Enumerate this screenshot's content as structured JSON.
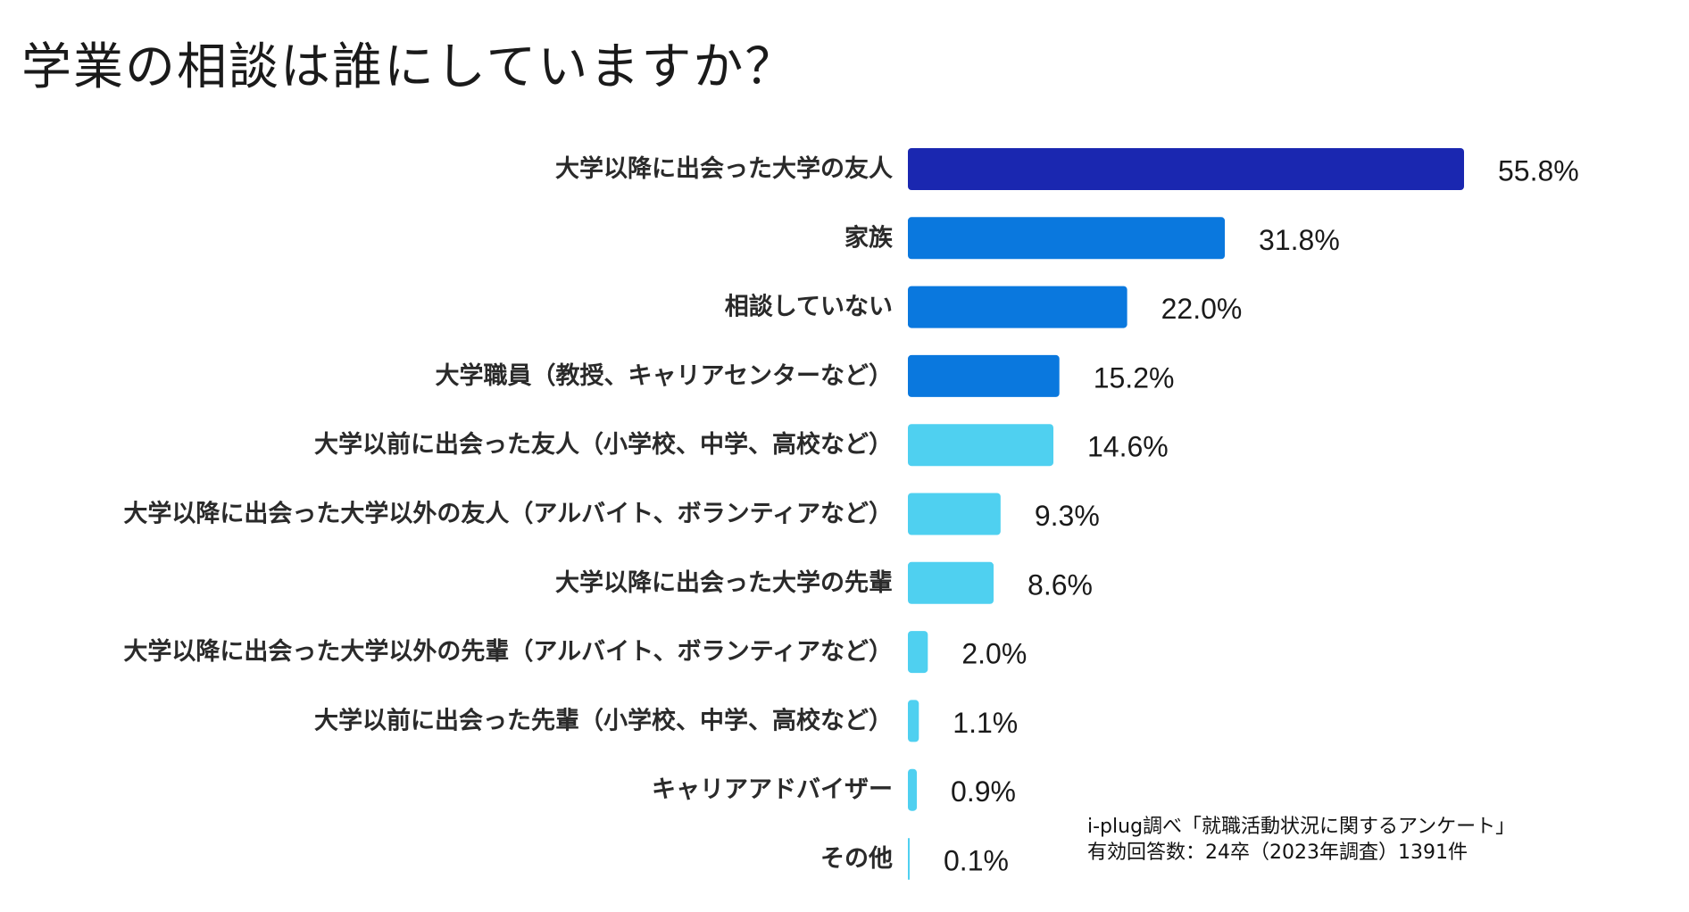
{
  "title": "学業の相談は誰にしていますか？",
  "chart_data": {
    "type": "bar",
    "orientation": "horizontal",
    "title": "学業の相談は誰にしていますか？",
    "categories": [
      "大学以降に出会った大学の友人",
      "家族",
      "相談していない",
      "大学職員（教授、キャリアセンターなど）",
      "大学以前に出会った友人（小学校、中学、高校など）",
      "大学以降に出会った大学以外の友人（アルバイト、ボランティアなど）",
      "大学以降に出会った大学の先輩",
      "大学以降に出会った大学以外の先輩（アルバイト、ボランティアなど）",
      "大学以前に出会った先輩（小学校、中学、高校など）",
      "キャリアアドバイザー",
      "その他"
    ],
    "values": [
      55.8,
      31.8,
      22.0,
      15.2,
      14.6,
      9.3,
      8.6,
      2.0,
      1.1,
      0.9,
      0.1
    ],
    "value_labels": [
      "55.8%",
      "31.8%",
      "22.0%",
      "15.2%",
      "14.6%",
      "9.3%",
      "8.6%",
      "2.0%",
      "1.1%",
      "0.9%",
      "0.1%"
    ],
    "colors": [
      "#1a27b0",
      "#0a78de",
      "#0a78de",
      "#0a78de",
      "#4fd0f0",
      "#4fd0f0",
      "#4fd0f0",
      "#4fd0f0",
      "#4fd0f0",
      "#4fd0f0",
      "#4fd0f0"
    ],
    "unit": "%",
    "xlim": [
      0,
      55.8
    ],
    "xlabel": "",
    "ylabel": "",
    "grid": false,
    "legend": "none"
  },
  "source": {
    "line1": "i-plug調べ「就職活動状況に関するアンケート」",
    "line2": "有効回答数：24卒（2023年調査）1391件"
  }
}
